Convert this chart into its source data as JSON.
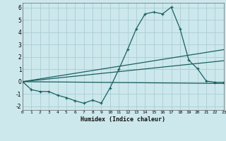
{
  "bg_color": "#cce8ec",
  "grid_color": "#aacdd4",
  "line_color": "#1a6060",
  "xlabel": "Humidex (Indice chaleur)",
  "xlim": [
    0,
    23
  ],
  "ylim": [
    -2.3,
    6.4
  ],
  "xticks": [
    0,
    1,
    2,
    3,
    4,
    5,
    6,
    7,
    8,
    9,
    10,
    11,
    12,
    13,
    14,
    15,
    16,
    17,
    18,
    19,
    20,
    21,
    22,
    23
  ],
  "yticks": [
    -2,
    -1,
    0,
    1,
    2,
    3,
    4,
    5,
    6
  ],
  "line1_x": [
    0,
    1,
    2,
    3,
    4,
    5,
    6,
    7,
    8,
    9,
    10,
    11,
    12,
    13,
    14,
    15,
    16,
    17,
    18,
    19,
    20,
    21,
    22,
    23
  ],
  "line1_y": [
    0,
    -0.65,
    -0.8,
    -0.8,
    -1.1,
    -1.3,
    -1.55,
    -1.75,
    -1.5,
    -1.75,
    -0.5,
    1.0,
    2.6,
    4.3,
    5.5,
    5.65,
    5.5,
    6.05,
    4.3,
    1.75,
    1.05,
    0.05,
    -0.05,
    -0.05
  ],
  "line2_x": [
    0,
    23
  ],
  "line2_y": [
    0.0,
    2.6
  ],
  "line3_x": [
    0,
    23
  ],
  "line3_y": [
    0.0,
    1.7
  ],
  "line4_x": [
    0,
    23
  ],
  "line4_y": [
    0.0,
    -0.15
  ]
}
